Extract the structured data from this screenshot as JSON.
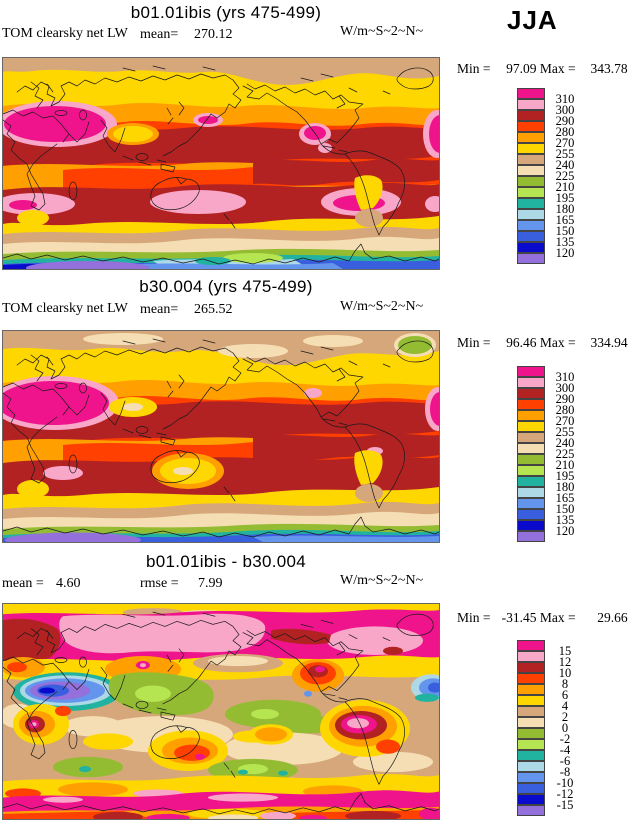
{
  "season": "JJA",
  "palette": [
    "#F0148C",
    "#F9A7C9",
    "#B22222",
    "#FF4000",
    "#FFA000",
    "#FFD700",
    "#D6A77A",
    "#F5DEB3",
    "#94BC33",
    "#B5E550",
    "#22B2A0",
    "#ADD8E6",
    "#6495ED",
    "#3A5FDE",
    "#0A0ACD",
    "#9370DB"
  ],
  "panels": [
    {
      "title": "b01.01ibis (yrs 475-499)",
      "variable": "TOM clearsky net LW",
      "mean_label": "mean=",
      "mean": "270.12",
      "units": "W/m~S~2~N~",
      "min_label": "Min =",
      "min": "97.09",
      "max_label": "Max =",
      "max": "343.78",
      "ticks": [
        "310",
        "300",
        "290",
        "280",
        "270",
        "255",
        "240",
        "225",
        "210",
        "195",
        "180",
        "165",
        "150",
        "135",
        "120"
      ]
    },
    {
      "title": "b30.004 (yrs 475-499)",
      "variable": "TOM clearsky net LW",
      "mean_label": "mean=",
      "mean": "265.52",
      "units": "W/m~S~2~N~",
      "min_label": "Min =",
      "min": "96.46",
      "max_label": "Max =",
      "max": "334.94",
      "ticks": [
        "310",
        "300",
        "290",
        "280",
        "270",
        "255",
        "240",
        "225",
        "210",
        "195",
        "180",
        "165",
        "150",
        "135",
        "120"
      ]
    },
    {
      "title": "b01.01ibis - b30.004",
      "mean_label": "mean =",
      "mean": "4.60",
      "rmse_label": "rmse =",
      "rmse": "7.99",
      "units": "W/m~S~2~N~",
      "min_label": "Min =",
      "min": "-31.45",
      "max_label": "Max =",
      "max": "29.66",
      "ticks": [
        "15",
        "12",
        "10",
        "8",
        "6",
        "4",
        "2",
        "0",
        "-2",
        "-4",
        "-6",
        "-8",
        "-10",
        "-12",
        "-15"
      ]
    }
  ],
  "chart_data": [
    {
      "type": "heatmap",
      "subtype": "global-filled-contour-map",
      "title": "b01.01ibis (yrs 475-499)",
      "variable": "TOM clearsky net LW",
      "season": "JJA",
      "units": "W/m~S~2~N~",
      "mean": 270.12,
      "min": 97.09,
      "max": 343.78,
      "contour_levels": [
        120,
        135,
        150,
        165,
        180,
        195,
        210,
        225,
        240,
        255,
        270,
        280,
        290,
        300,
        310
      ],
      "legend_position": "right"
    },
    {
      "type": "heatmap",
      "subtype": "global-filled-contour-map",
      "title": "b30.004 (yrs 475-499)",
      "variable": "TOM clearsky net LW",
      "season": "JJA",
      "units": "W/m~S~2~N~",
      "mean": 265.52,
      "min": 96.46,
      "max": 334.94,
      "contour_levels": [
        120,
        135,
        150,
        165,
        180,
        195,
        210,
        225,
        240,
        255,
        270,
        280,
        290,
        300,
        310
      ],
      "legend_position": "right"
    },
    {
      "type": "heatmap",
      "subtype": "global-filled-contour-difference-map",
      "title": "b01.01ibis - b30.004",
      "variable": "TOM clearsky net LW",
      "season": "JJA",
      "units": "W/m~S~2~N~",
      "mean": 4.6,
      "rmse": 7.99,
      "min": -31.45,
      "max": 29.66,
      "contour_levels": [
        -15,
        -12,
        -10,
        -8,
        -6,
        -4,
        -2,
        0,
        2,
        4,
        6,
        8,
        10,
        12,
        15
      ],
      "legend_position": "right"
    }
  ]
}
